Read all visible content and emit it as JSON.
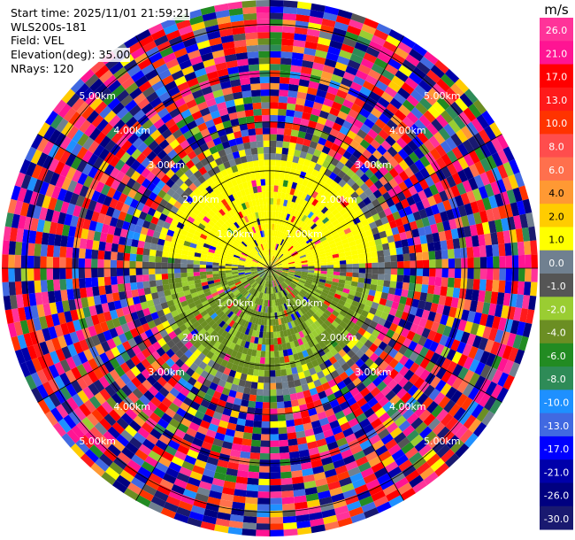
{
  "header": {
    "start_time": "Start time: 2025/11/01 21:59:21",
    "station": "WLS200s-181",
    "field": "Field: VEL",
    "elevation": "Elevation(deg): 35.00",
    "nrays": "NRays: 120"
  },
  "colorbar": {
    "unit": "m/s",
    "ticks": [
      "26.0",
      "21.0",
      "17.0",
      "13.0",
      "10.0",
      "8.0",
      "6.0",
      "4.0",
      "2.0",
      "1.0",
      "0.0",
      "-1.0",
      "-2.0",
      "-4.0",
      "-6.0",
      "-8.0",
      "-10.0",
      "-13.0",
      "-17.0",
      "-21.0",
      "-26.0",
      "-30.0"
    ],
    "colors": [
      "#ff3399",
      "#ff1493",
      "#ff0000",
      "#ff1a1a",
      "#ff3300",
      "#ff4d4d",
      "#ff704d",
      "#ff9933",
      "#ffcc00",
      "#ffff00",
      "#708090",
      "#555555",
      "#9acd32",
      "#6b8e23",
      "#228b22",
      "#2e8b57",
      "#1e90ff",
      "#4169e1",
      "#0000ff",
      "#0000aa",
      "#000080",
      "#191970"
    ]
  },
  "chart_data": {
    "type": "heatmap",
    "title": "",
    "field": "VEL",
    "unit": "m/s",
    "n_rays": 120,
    "range_rings_km": [
      1,
      2,
      3,
      4,
      5
    ],
    "max_range_km": 5.5,
    "ring_label_texts": [
      "1.00km",
      "2.00km",
      "3.00km",
      "4.00km",
      "5.00km"
    ],
    "spokes_deg": [
      0,
      30,
      60,
      90,
      120,
      150
    ],
    "value_range": [
      -30,
      30
    ],
    "near_field_pattern": "yellow (1-2 m/s) north, olive/green (-1 to -4 m/s) south, mixed noise beyond ~2.5 km"
  }
}
